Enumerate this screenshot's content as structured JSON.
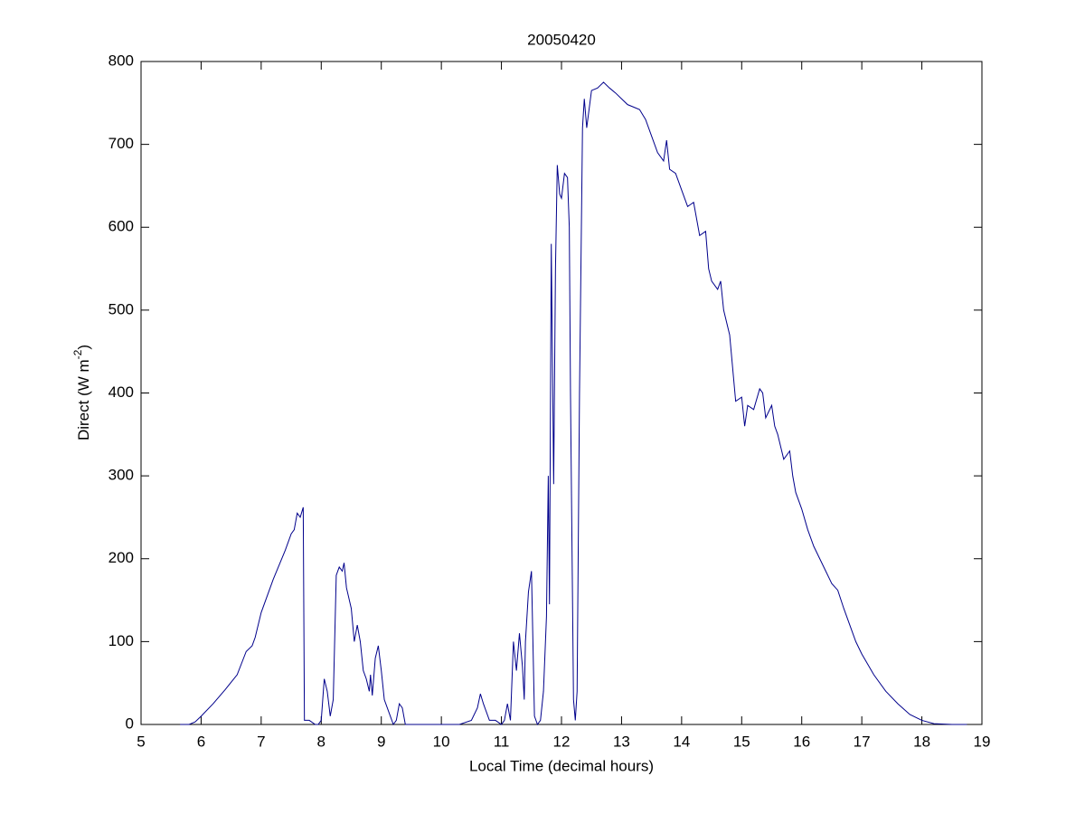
{
  "chart_data": {
    "type": "line",
    "title": "20050420",
    "xlabel": "Local Time (decimal hours)",
    "ylabel": [
      {
        "text": "Direct (W m"
      },
      {
        "text": "-2",
        "sup": true
      },
      {
        "text": ")"
      }
    ],
    "xlim": [
      5,
      19
    ],
    "ylim": [
      0,
      800
    ],
    "xticks": [
      5,
      6,
      7,
      8,
      9,
      10,
      11,
      12,
      13,
      14,
      15,
      16,
      17,
      18,
      19
    ],
    "yticks": [
      0,
      100,
      200,
      300,
      400,
      500,
      600,
      700,
      800
    ],
    "grid": false,
    "series": [
      {
        "color": "#00008b",
        "x": [
          5.65,
          5.8,
          5.9,
          6.0,
          6.2,
          6.4,
          6.6,
          6.75,
          6.85,
          6.9,
          7.0,
          7.2,
          7.4,
          7.5,
          7.55,
          7.6,
          7.65,
          7.7,
          7.72,
          7.8,
          7.9,
          7.95,
          8.0,
          8.05,
          8.1,
          8.15,
          8.2,
          8.25,
          8.3,
          8.35,
          8.38,
          8.42,
          8.5,
          8.55,
          8.6,
          8.65,
          8.7,
          8.75,
          8.8,
          8.82,
          8.85,
          8.9,
          8.95,
          9.0,
          9.05,
          9.15,
          9.2,
          9.25,
          9.3,
          9.35,
          9.4,
          9.6,
          10.0,
          10.3,
          10.5,
          10.6,
          10.65,
          10.7,
          10.8,
          10.9,
          11.0,
          11.05,
          11.1,
          11.15,
          11.2,
          11.25,
          11.3,
          11.35,
          11.38,
          11.4,
          11.45,
          11.5,
          11.55,
          11.6,
          11.65,
          11.7,
          11.75,
          11.78,
          11.8,
          11.83,
          11.87,
          11.9,
          11.93,
          11.97,
          12.0,
          12.05,
          12.1,
          12.13,
          12.15,
          12.2,
          12.23,
          12.26,
          12.3,
          12.35,
          12.38,
          12.42,
          12.5,
          12.6,
          12.7,
          12.8,
          12.9,
          13.0,
          13.1,
          13.2,
          13.3,
          13.4,
          13.5,
          13.6,
          13.7,
          13.75,
          13.8,
          13.9,
          14.0,
          14.1,
          14.2,
          14.3,
          14.4,
          14.45,
          14.5,
          14.6,
          14.65,
          14.7,
          14.8,
          14.85,
          14.9,
          15.0,
          15.05,
          15.1,
          15.2,
          15.3,
          15.35,
          15.4,
          15.5,
          15.55,
          15.6,
          15.7,
          15.8,
          15.85,
          15.9,
          16.0,
          16.1,
          16.2,
          16.3,
          16.4,
          16.5,
          16.6,
          16.7,
          16.8,
          16.9,
          17.0,
          17.2,
          17.4,
          17.6,
          17.8,
          18.0,
          18.2,
          18.5,
          18.75
        ],
        "values": [
          0,
          0,
          3,
          10,
          25,
          42,
          60,
          88,
          95,
          105,
          135,
          175,
          210,
          230,
          235,
          255,
          250,
          262,
          5,
          5,
          0,
          0,
          5,
          55,
          40,
          10,
          30,
          180,
          190,
          185,
          195,
          165,
          140,
          100,
          120,
          100,
          65,
          55,
          40,
          60,
          35,
          80,
          95,
          65,
          30,
          10,
          0,
          5,
          25,
          20,
          0,
          0,
          0,
          0,
          5,
          20,
          37,
          25,
          5,
          5,
          0,
          5,
          25,
          5,
          100,
          65,
          110,
          70,
          30,
          100,
          160,
          185,
          10,
          0,
          5,
          40,
          130,
          300,
          145,
          580,
          290,
          550,
          675,
          640,
          635,
          665,
          660,
          600,
          400,
          30,
          5,
          40,
          400,
          720,
          755,
          720,
          765,
          768,
          775,
          768,
          762,
          755,
          748,
          745,
          742,
          730,
          710,
          690,
          680,
          705,
          670,
          665,
          645,
          625,
          630,
          590,
          595,
          550,
          535,
          525,
          535,
          500,
          470,
          430,
          390,
          395,
          360,
          385,
          380,
          405,
          400,
          370,
          385,
          360,
          350,
          320,
          330,
          300,
          280,
          260,
          235,
          215,
          200,
          185,
          170,
          162,
          140,
          120,
          100,
          85,
          60,
          40,
          25,
          12,
          5,
          1,
          0,
          0
        ]
      }
    ]
  }
}
